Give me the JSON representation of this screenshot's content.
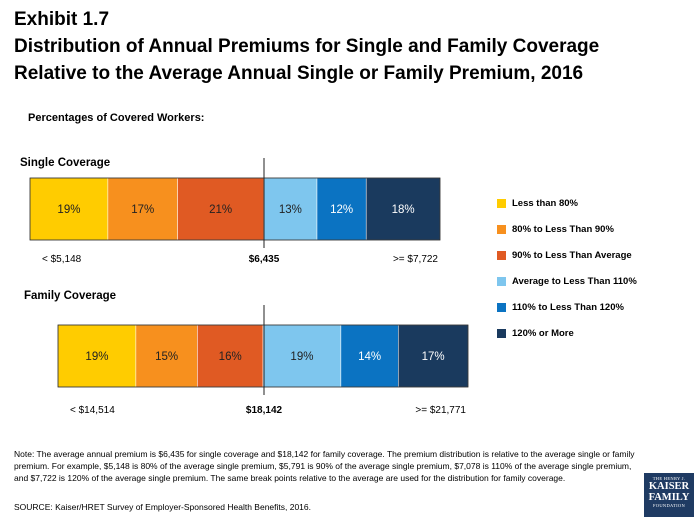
{
  "title": {
    "line1": "Exhibit 1.7",
    "line2": "Distribution of Annual Premiums for Single and Family Coverage",
    "line3": "Relative to the Average Annual Single or Family Premium, 2016"
  },
  "subtitle": "Percentages of Covered Workers:",
  "colors": [
    "#ffcc00",
    "#f7901e",
    "#e05a23",
    "#7ec6ee",
    "#0b73c2",
    "#1a3a5e"
  ],
  "chart_data": [
    {
      "type": "bar",
      "stacked": true,
      "orientation": "horizontal",
      "title": "Single Coverage",
      "categories": [
        "Less than 80%",
        "80% to Less Than 90%",
        "90% to Less Than Average",
        "Average to Less Than 110%",
        "110% to Less Than 120%",
        "120% or More"
      ],
      "values": [
        19,
        17,
        21,
        13,
        12,
        18
      ],
      "value_labels": [
        "19%",
        "17%",
        "21%",
        "13%",
        "12%",
        "18%"
      ],
      "scale_labels": {
        "low": "< $5,148",
        "average": "$6,435",
        "high": ">= $7,722"
      }
    },
    {
      "type": "bar",
      "stacked": true,
      "orientation": "horizontal",
      "title": "Family Coverage",
      "categories": [
        "Less than 80%",
        "80% to Less Than 90%",
        "90% to Less Than Average",
        "Average to Less Than 110%",
        "110% to Less Than 120%",
        "120% or More"
      ],
      "values": [
        19,
        15,
        16,
        19,
        14,
        17
      ],
      "value_labels": [
        "19%",
        "15%",
        "16%",
        "19%",
        "14%",
        "17%"
      ],
      "scale_labels": {
        "low": "< $14,514",
        "average": "$18,142",
        "high": ">= $21,771"
      }
    }
  ],
  "legend": [
    "Less than 80%",
    "80% to Less Than 90%",
    "90% to Less Than Average",
    "Average to Less Than 110%",
    "110% to Less Than 120%",
    "120% or More"
  ],
  "note": "Note: The average annual premium is $6,435 for single coverage and $18,142 for family coverage. The premium distribution is relative to the average single or family premium. For example, $5,148 is 80% of the average single premium, $5,791 is 90% of the average single premium, $7,078 is 110% of the average single premium, and $7,722 is 120% of the average single premium. The same break points relative to the average are used for the distribution for family coverage.",
  "source": "SOURCE: Kaiser/HRET Survey of Employer-Sponsored Health Benefits, 2016.",
  "logo": {
    "line1": "THE HENRY J.",
    "line2": "KAISER",
    "line3": "FAMILY",
    "line4": "FOUNDATION"
  }
}
